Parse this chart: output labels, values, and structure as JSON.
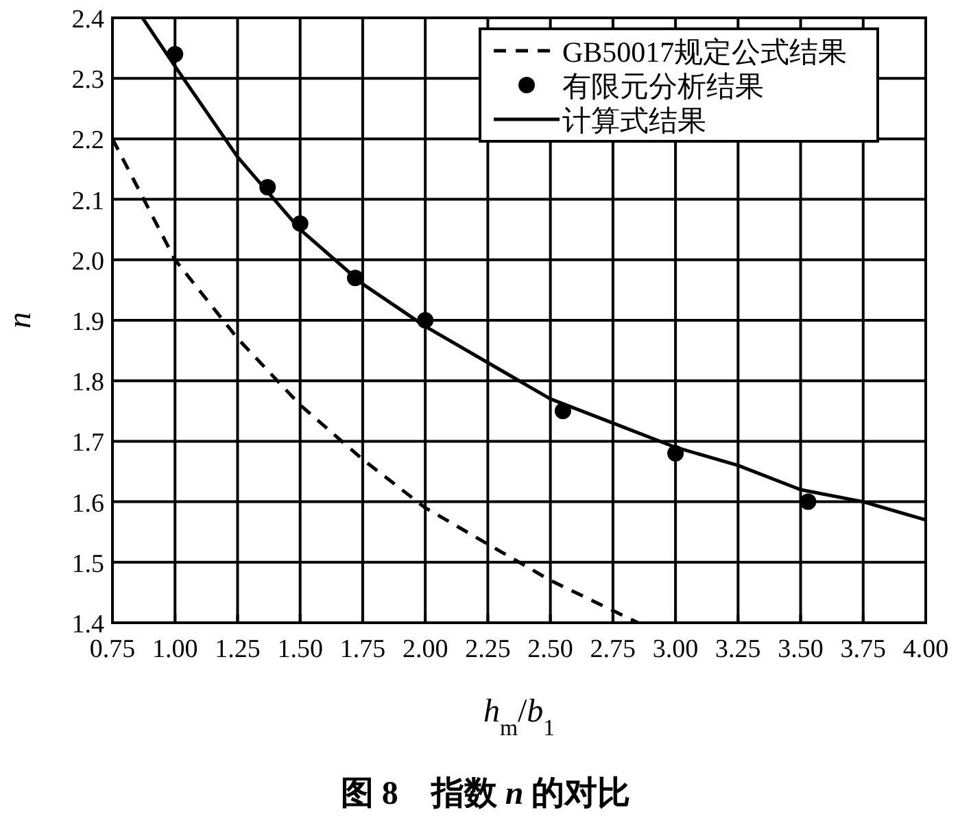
{
  "chart_data": {
    "type": "line",
    "title": "图 8　指数 *n* 的对比",
    "xlabel": "*h*$_{m}$/*b*$_{1}$",
    "ylabel": "*n*",
    "xlim": [
      0.75,
      4.0
    ],
    "xticks": [
      0.75,
      {
        "value": 1,
        "label": "1.00"
      },
      1.25,
      {
        "value": 1.5,
        "label": "1.50"
      },
      1.75,
      {
        "value": 2,
        "label": "2.00"
      },
      2.25,
      {
        "value": 2.5,
        "label": "2.50"
      },
      2.75,
      {
        "value": 3,
        "label": "3.00"
      },
      3.25,
      {
        "value": 3.5,
        "label": "3.50"
      },
      3.75,
      {
        "value": 4,
        "label": "4.00"
      }
    ],
    "ylim": [
      1.4,
      2.4
    ],
    "yticks": [
      1.4,
      1.5,
      1.6,
      1.7,
      1.8,
      1.9,
      {
        "value": 2,
        "label": "2.0"
      },
      2.1,
      2.2,
      2.3,
      2.4
    ],
    "grid": true,
    "legend": "top right",
    "series": [
      {
        "name": "GB50017规定公式结果",
        "line_style": "dashed",
        "color": "#000000",
        "x": [
          0.75,
          1.0,
          1.25,
          1.5,
          1.75,
          2.0,
          2.25,
          2.5,
          2.75,
          2.85
        ],
        "values": [
          2.2,
          2.0,
          1.87,
          1.76,
          1.67,
          1.59,
          1.53,
          1.47,
          1.42,
          1.4
        ]
      },
      {
        "name": "有限元分析结果",
        "type": "scatter",
        "marker": "circle",
        "color": "#000000",
        "x": [
          1.0,
          1.37,
          1.5,
          1.72,
          2.0,
          2.55,
          3.0,
          3.53
        ],
        "values": [
          2.34,
          2.12,
          2.06,
          1.97,
          1.9,
          1.75,
          1.68,
          1.6
        ]
      },
      {
        "name": "计算式结果",
        "line_style": "solid",
        "color": "#000000",
        "x": [
          0.87,
          1.0,
          1.25,
          1.5,
          1.75,
          2.0,
          2.25,
          2.5,
          2.75,
          3.0,
          3.25,
          3.5,
          3.75,
          4.0
        ],
        "values": [
          2.4,
          2.32,
          2.17,
          2.05,
          1.96,
          1.89,
          1.83,
          1.77,
          1.73,
          1.69,
          1.66,
          1.62,
          1.6,
          1.57
        ]
      }
    ]
  }
}
